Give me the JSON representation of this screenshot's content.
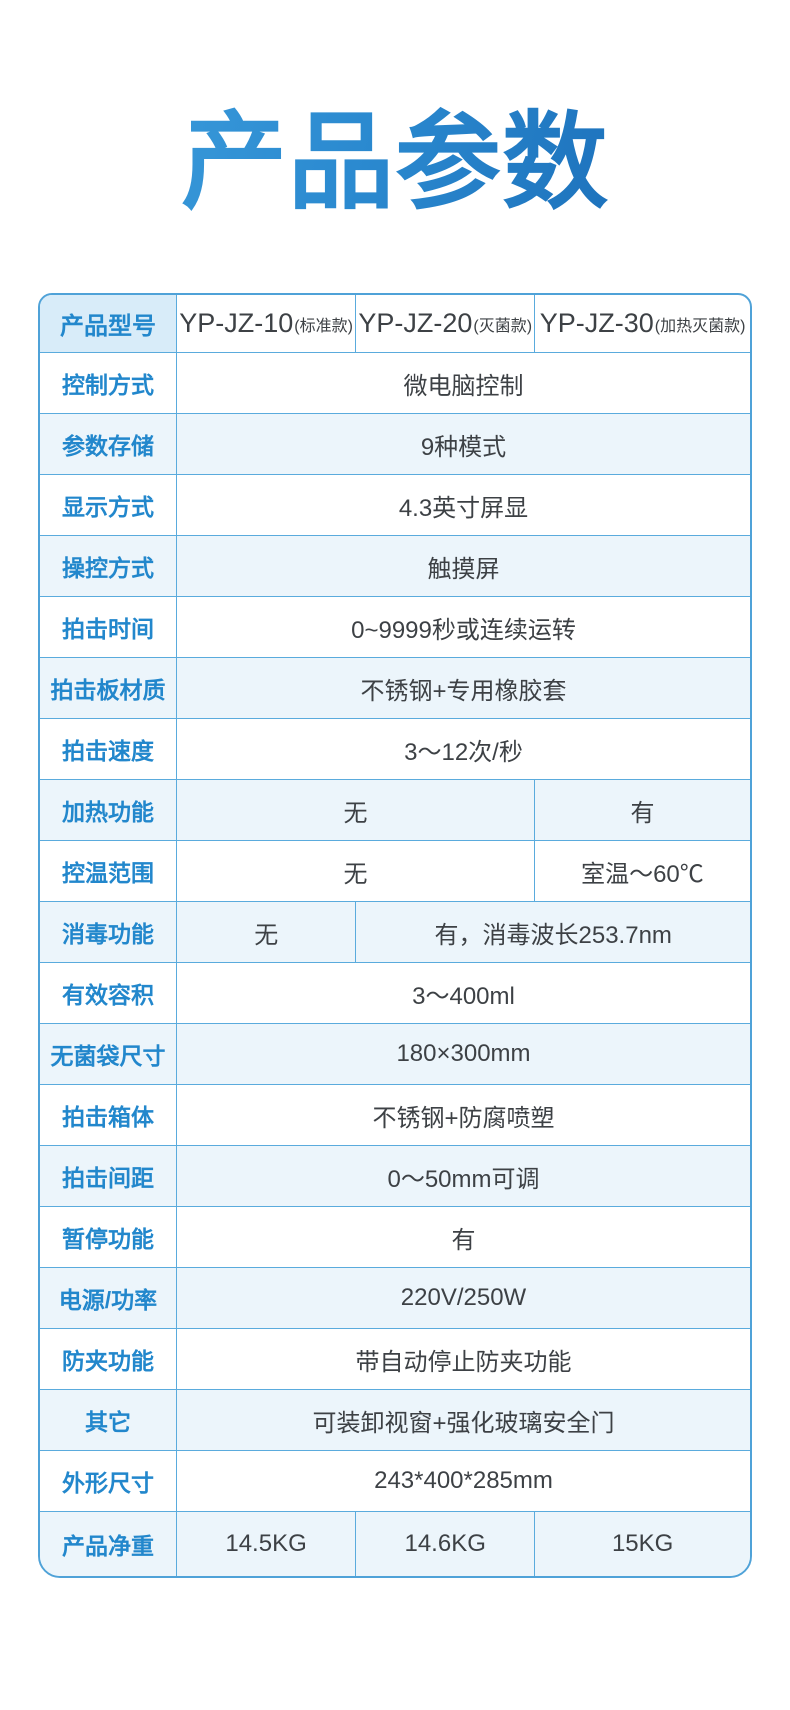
{
  "page": {
    "title": "产品参数"
  },
  "colors": {
    "title_gradient_start": "#3fa0de",
    "title_gradient_end": "#1767b3",
    "label_text": "#2287cc",
    "value_text": "#3d4145",
    "grid_border": "#5aabdd",
    "header_label_bg": "#d8ecf9",
    "stripe_row_bg": "#ecf5fb"
  },
  "table": {
    "header": {
      "label": "产品型号",
      "models": [
        {
          "name": "YP-JZ-10",
          "variant": "(标准款)"
        },
        {
          "name": "YP-JZ-20",
          "variant": "(灭菌款)"
        },
        {
          "name": "YP-JZ-30",
          "variant": "(加热灭菌款)"
        }
      ]
    },
    "rows": [
      {
        "label": "控制方式",
        "cells": [
          {
            "text": "微电脑控制",
            "span": 3
          }
        ]
      },
      {
        "label": "参数存储",
        "cells": [
          {
            "text": "9种模式",
            "span": 3
          }
        ]
      },
      {
        "label": "显示方式",
        "cells": [
          {
            "text": "4.3英寸屏显",
            "span": 3
          }
        ]
      },
      {
        "label": "操控方式",
        "cells": [
          {
            "text": "触摸屏",
            "span": 3
          }
        ]
      },
      {
        "label": "拍击时间",
        "cells": [
          {
            "text": "0~9999秒或连续运转",
            "span": 3
          }
        ]
      },
      {
        "label": "拍击板材质",
        "cells": [
          {
            "text": "不锈钢+专用橡胶套",
            "span": 3
          }
        ]
      },
      {
        "label": "拍击速度",
        "cells": [
          {
            "text": "3～12次/秒",
            "span": 3
          }
        ]
      },
      {
        "label": "加热功能",
        "cells": [
          {
            "text": "无",
            "span": 2
          },
          {
            "text": "有",
            "span": 1
          }
        ]
      },
      {
        "label": "控温范围",
        "cells": [
          {
            "text": "无",
            "span": 2
          },
          {
            "text": "室温～60℃",
            "span": 1
          }
        ]
      },
      {
        "label": "消毒功能",
        "cells": [
          {
            "text": "无",
            "span": 1
          },
          {
            "text": "有，消毒波长253.7nm",
            "span": 2
          }
        ]
      },
      {
        "label": "有效容积",
        "cells": [
          {
            "text": "3～400ml",
            "span": 3
          }
        ]
      },
      {
        "label": "无菌袋尺寸",
        "cells": [
          {
            "text": "180×300mm",
            "span": 3
          }
        ]
      },
      {
        "label": "拍击箱体",
        "cells": [
          {
            "text": "不锈钢+防腐喷塑",
            "span": 3
          }
        ]
      },
      {
        "label": "拍击间距",
        "cells": [
          {
            "text": "0～50mm可调",
            "span": 3
          }
        ]
      },
      {
        "label": "暂停功能",
        "cells": [
          {
            "text": "有",
            "span": 3
          }
        ]
      },
      {
        "label": "电源/功率",
        "cells": [
          {
            "text": "220V/250W",
            "span": 3
          }
        ]
      },
      {
        "label": "防夹功能",
        "cells": [
          {
            "text": "带自动停止防夹功能",
            "span": 3
          }
        ]
      },
      {
        "label": "其它",
        "cells": [
          {
            "text": "可装卸视窗+强化玻璃安全门",
            "span": 3
          }
        ]
      },
      {
        "label": "外形尺寸",
        "cells": [
          {
            "text": "243*400*285mm",
            "span": 3
          }
        ]
      },
      {
        "label": "产品净重",
        "cells": [
          {
            "text": "14.5KG",
            "span": 1
          },
          {
            "text": "14.6KG",
            "span": 1
          },
          {
            "text": "15KG",
            "span": 1
          }
        ]
      }
    ]
  }
}
